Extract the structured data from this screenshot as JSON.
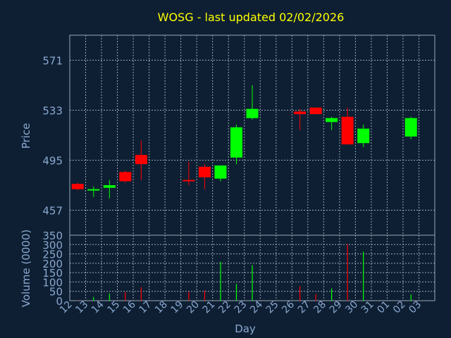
{
  "title": "WOSG - last updated 02/02/2026",
  "chart_data": [
    {
      "type": "candlestick",
      "ylabel": "Price",
      "ylim": [
        438,
        590
      ],
      "y_ticks": [
        457,
        495,
        533,
        571
      ],
      "grid": true,
      "colors": {
        "up": "#00ff00",
        "down": "#ff0000",
        "text": "#8aa8cf",
        "title": "#ffff00",
        "grid": "#9aa6b6",
        "background": "#0e1f33"
      },
      "candles": [
        {
          "x": "12",
          "open": 477,
          "high": 478,
          "low": 472,
          "close": 473
        },
        {
          "x": "13",
          "open": 472,
          "high": 475,
          "low": 467,
          "close": 473
        },
        {
          "x": "14",
          "open": 474,
          "high": 480,
          "low": 466,
          "close": 476
        },
        {
          "x": "15",
          "open": 486,
          "high": 487,
          "low": 478,
          "close": 479
        },
        {
          "x": "16",
          "open": 499,
          "high": 510,
          "low": 480,
          "close": 492
        },
        {
          "x": "19",
          "open": 480,
          "high": 494,
          "low": 476,
          "close": 479
        },
        {
          "x": "20",
          "open": 490,
          "high": 492,
          "low": 473,
          "close": 482
        },
        {
          "x": "21",
          "open": 481,
          "high": 491,
          "low": 479,
          "close": 491
        },
        {
          "x": "22",
          "open": 497,
          "high": 522,
          "low": 492,
          "close": 520
        },
        {
          "x": "23",
          "open": 527,
          "high": 552,
          "low": 526,
          "close": 534
        },
        {
          "x": "26",
          "open": 532,
          "high": 534,
          "low": 518,
          "close": 530
        },
        {
          "x": "27",
          "open": 535,
          "high": 535,
          "low": 530,
          "close": 530
        },
        {
          "x": "28",
          "open": 524,
          "high": 528,
          "low": 518,
          "close": 527
        },
        {
          "x": "29",
          "open": 528,
          "high": 535,
          "low": 507,
          "close": 507
        },
        {
          "x": "30",
          "open": 508,
          "high": 522,
          "low": 505,
          "close": 519
        },
        {
          "x": "02",
          "open": 513,
          "high": 528,
          "low": 511,
          "close": 527
        }
      ]
    },
    {
      "type": "bar",
      "ylabel": "Volume (0000)",
      "ylim": [
        0,
        350
      ],
      "y_ticks": [
        0,
        50,
        100,
        150,
        200,
        250,
        300,
        350
      ],
      "grid": true,
      "xlabel": "Day",
      "categories": [
        "12",
        "13",
        "14",
        "15",
        "16",
        "17",
        "18",
        "19",
        "20",
        "21",
        "22",
        "23",
        "24",
        "25",
        "26",
        "27",
        "28",
        "29",
        "30",
        "31",
        "01",
        "02",
        "03"
      ],
      "bars": [
        {
          "x": "12",
          "value": 3,
          "direction": "down"
        },
        {
          "x": "13",
          "value": 20,
          "direction": "up"
        },
        {
          "x": "14",
          "value": 38,
          "direction": "up"
        },
        {
          "x": "15",
          "value": 45,
          "direction": "down"
        },
        {
          "x": "16",
          "value": 72,
          "direction": "down"
        },
        {
          "x": "19",
          "value": 48,
          "direction": "down"
        },
        {
          "x": "20",
          "value": 55,
          "direction": "down"
        },
        {
          "x": "21",
          "value": 208,
          "direction": "up"
        },
        {
          "x": "22",
          "value": 90,
          "direction": "up"
        },
        {
          "x": "23",
          "value": 190,
          "direction": "up"
        },
        {
          "x": "26",
          "value": 78,
          "direction": "down"
        },
        {
          "x": "27",
          "value": 35,
          "direction": "down"
        },
        {
          "x": "28",
          "value": 65,
          "direction": "up"
        },
        {
          "x": "29",
          "value": 302,
          "direction": "down"
        },
        {
          "x": "30",
          "value": 262,
          "direction": "up"
        },
        {
          "x": "02",
          "value": 33,
          "direction": "up"
        }
      ]
    }
  ]
}
